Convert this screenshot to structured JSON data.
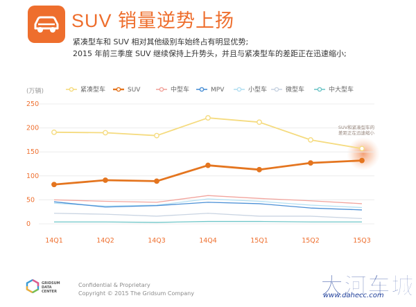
{
  "header": {
    "icon": "car-icon",
    "title": "SUV 销量逆势上扬",
    "subtitle_lines": [
      "紧凑型车和 SUV 相对其他级别车始终占有明显优势;",
      "2015 年前三季度 SUV 继续保持上升势头，并且与紧凑型车的差距正在迅速缩小;"
    ]
  },
  "chart_data": {
    "type": "line",
    "unit": "(万辆)",
    "categories": [
      "14Q1",
      "14Q2",
      "14Q3",
      "14Q4",
      "15Q1",
      "15Q2",
      "15Q3"
    ],
    "ylim": [
      0,
      250
    ],
    "yticks": [
      0,
      50,
      100,
      150,
      200,
      250
    ],
    "grid": true,
    "legend_position": "top",
    "series": [
      {
        "name": "紧凑型车",
        "color": "#f5db7f",
        "values": [
          191,
          190,
          184,
          221,
          212,
          175,
          157
        ]
      },
      {
        "name": "SUV",
        "color": "#e4751f",
        "values": [
          82,
          91,
          89,
          122,
          113,
          127,
          132
        ]
      },
      {
        "name": "中型车",
        "color": "#f2a49d",
        "values": [
          50,
          47,
          45,
          59,
          53,
          48,
          42
        ]
      },
      {
        "name": "MPV",
        "color": "#4a8fd6",
        "values": [
          46,
          35,
          38,
          45,
          42,
          33,
          29
        ]
      },
      {
        "name": "小型车",
        "color": "#b3dff2",
        "values": [
          43,
          37,
          39,
          52,
          47,
          39,
          34
        ]
      },
      {
        "name": "微型车",
        "color": "#c9d4e2",
        "values": [
          22,
          20,
          16,
          22,
          16,
          16,
          11
        ]
      },
      {
        "name": "中大型车",
        "color": "#6fc6c8",
        "values": [
          4,
          4,
          3,
          5,
          5,
          4,
          4
        ]
      }
    ],
    "annotation": "SUV和紧凑型车的差距正在迅速缩小",
    "axis_label_color": "#ee6e2d"
  },
  "footer": {
    "logo_text": "GRIDSUM DATA CENTER",
    "line1": "Confidential & Proprietary",
    "line2": "Copyright © 2015 The Gridsum Company"
  },
  "watermark": {
    "main": "大河车城",
    "url": "www.dahecc.com"
  },
  "colors": {
    "accent": "#ee6e2d",
    "watermark": "#1f3f9a"
  }
}
